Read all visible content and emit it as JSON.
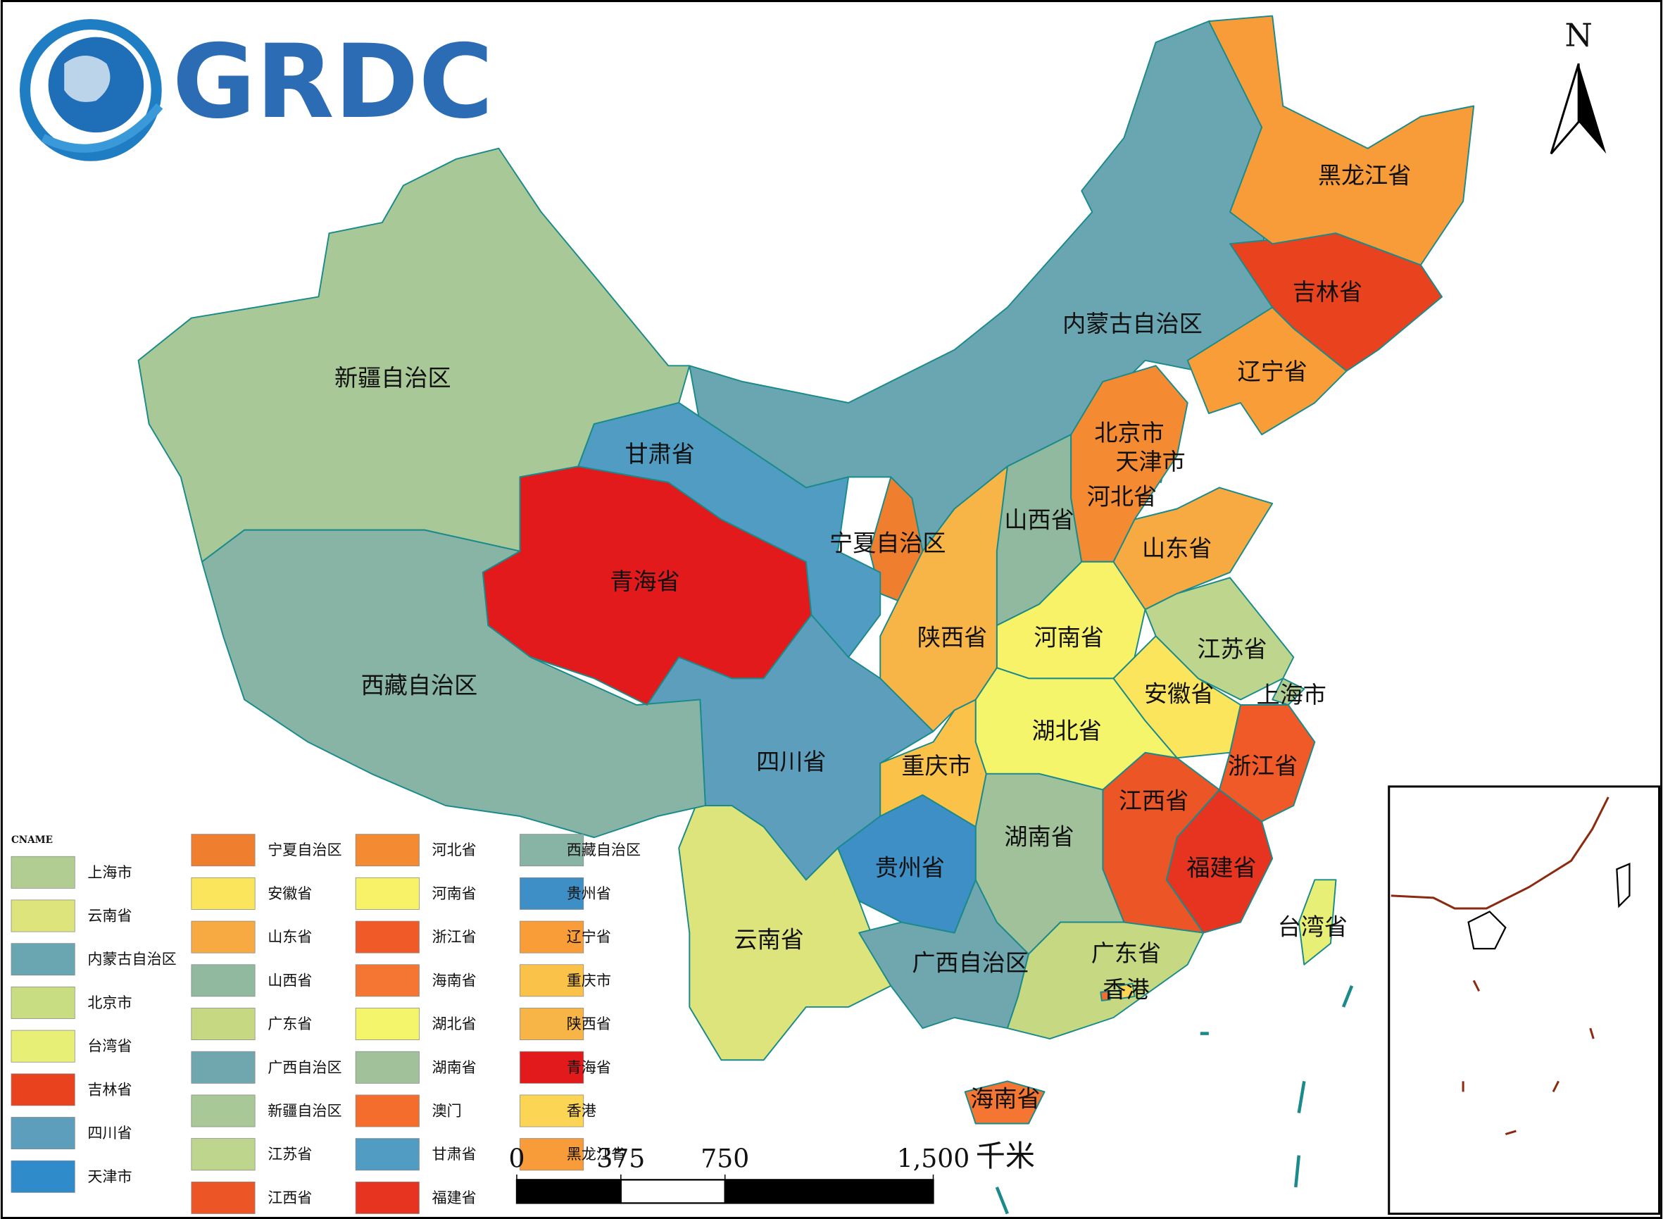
{
  "logo": "GRDC",
  "north": "N",
  "legend": {
    "title": "CNAME",
    "items": [
      {
        "name": "上海市",
        "color": "#b2cd91"
      },
      {
        "name": "云南省",
        "color": "#dde47c"
      },
      {
        "name": "内蒙古自治区",
        "color": "#6aa6b1"
      },
      {
        "name": "北京市",
        "color": "#c8dc82"
      },
      {
        "name": "台湾省",
        "color": "#e8ef76"
      },
      {
        "name": "吉林省",
        "color": "#e8421e"
      },
      {
        "name": "四川省",
        "color": "#5c9ebb"
      },
      {
        "name": "天津市",
        "color": "#2f8bc9"
      },
      {
        "name": "宁夏自治区",
        "color": "#f07e2f"
      },
      {
        "name": "安徽省",
        "color": "#fbe55c"
      },
      {
        "name": "山东省",
        "color": "#f8aa42"
      },
      {
        "name": "山西省",
        "color": "#91b9a0"
      },
      {
        "name": "广东省",
        "color": "#c6d982"
      },
      {
        "name": "广西自治区",
        "color": "#70a7ae"
      },
      {
        "name": "新疆自治区",
        "color": "#a9c897"
      },
      {
        "name": "江苏省",
        "color": "#bdd58c"
      },
      {
        "name": "江西省",
        "color": "#ec5525"
      },
      {
        "name": "河北省",
        "color": "#f48b32"
      },
      {
        "name": "河南省",
        "color": "#f7f267"
      },
      {
        "name": "浙江省",
        "color": "#f05a28"
      },
      {
        "name": "海南省",
        "color": "#f47632"
      },
      {
        "name": "湖北省",
        "color": "#f4f56b"
      },
      {
        "name": "湖南省",
        "color": "#a1c19b"
      },
      {
        "name": "澳门",
        "color": "#f46d2d"
      },
      {
        "name": "甘肃省",
        "color": "#509cc2"
      },
      {
        "name": "福建省",
        "color": "#e63421"
      },
      {
        "name": "西藏自治区",
        "color": "#87b4a5"
      },
      {
        "name": "贵州省",
        "color": "#3d8fc6"
      },
      {
        "name": "辽宁省",
        "color": "#f99d39"
      },
      {
        "name": "重庆市",
        "color": "#fbc24a"
      },
      {
        "name": "陕西省",
        "color": "#f8b547"
      },
      {
        "name": "青海省",
        "color": "#e31a1c"
      },
      {
        "name": "香港",
        "color": "#fcd554"
      },
      {
        "name": "黑龙江省",
        "color": "#f89b39"
      }
    ]
  },
  "scale_bar": {
    "ticks": [
      0,
      375,
      750,
      {
        "value": 1500,
        "label": "1,500"
      }
    ],
    "unit": "千米"
  }
}
